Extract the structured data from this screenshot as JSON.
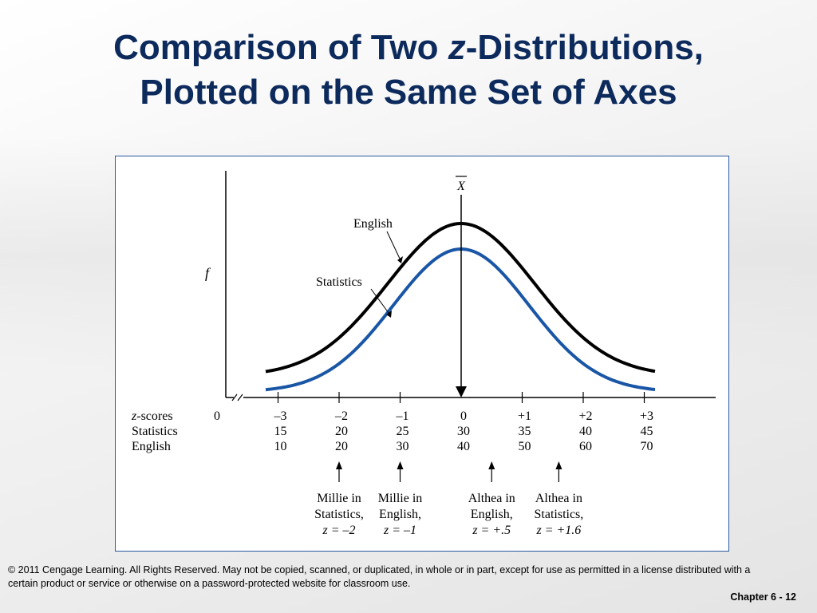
{
  "slide": {
    "title_part1": "Comparison of Two ",
    "title_z": "z",
    "title_part2": "-Distributions,",
    "title_line2": "Plotted on the Same Set of Axes",
    "copyright": "© 2011 Cengage Learning. All Rights Reserved. May not be copied, scanned, or duplicated, in whole or in part, except for use as permitted in a license distributed with a certain product or service or otherwise on a password-protected website for classroom use.",
    "chapter": "Chapter 6 - 12"
  },
  "diagram": {
    "y_axis_label": "f",
    "mean_label": "X",
    "curve_labels": {
      "english": "English",
      "statistics": "Statistics"
    },
    "curve_colors": {
      "english": "#000000",
      "statistics": "#1a56a6"
    },
    "row_labels": {
      "z_prefix": "z",
      "z_suffix": "-scores",
      "statistics": "Statistics",
      "english": "English"
    },
    "zero_label": "0",
    "z_scores": [
      "–3",
      "–2",
      "–1",
      "0",
      "+1",
      "+2",
      "+3"
    ],
    "statistics_scores": [
      "15",
      "20",
      "25",
      "30",
      "35",
      "40",
      "45"
    ],
    "english_scores": [
      "10",
      "20",
      "30",
      "40",
      "50",
      "60",
      "70"
    ],
    "annotations": [
      {
        "line1": "Millie in",
        "line2": "Statistics,",
        "z": "z = –2",
        "z_value": -2
      },
      {
        "line1": "Millie in",
        "line2": "English,",
        "z": "z = –1",
        "z_value": -1
      },
      {
        "line1": "Althea in",
        "line2": "English,",
        "z": "z = +.5",
        "z_value": 0.5
      },
      {
        "line1": "Althea in",
        "line2": "Statistics,",
        "z": "z = +1.6",
        "z_value": 1.6
      }
    ]
  }
}
